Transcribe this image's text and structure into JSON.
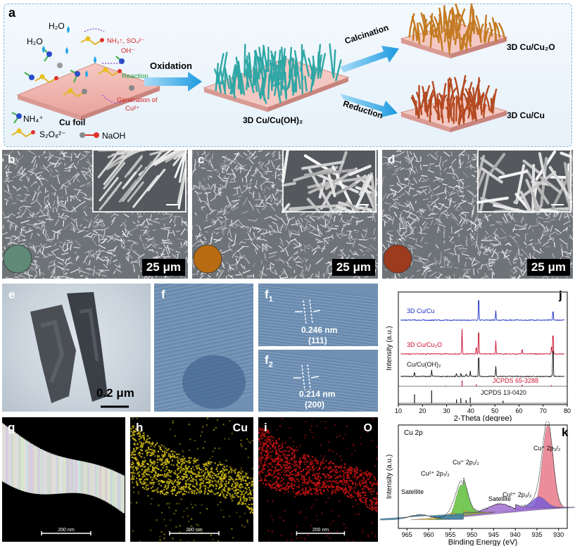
{
  "panel_a": {
    "label": "a",
    "h2o_1": "H₂O",
    "h2o_2": "H₂O",
    "byproducts": "NH₃↑, SO₄²⁻",
    "oh": "OH⁻",
    "reaction": "Reaction",
    "generation": "Generation of",
    "cu2": "Cu²⁺",
    "cu_foil": "Cu foil",
    "nh4": "NH₄⁺",
    "s2o8": "S₂O₈²⁻",
    "naoh": "NaOH",
    "oxidation": "Oxidation",
    "product_oh": "3D Cu/Cu(OH)₂",
    "calcination": "Calcination",
    "reduction": "Reduction",
    "product_cu2o": "3D Cu/Cu₂O",
    "product_cu": "3D Cu/Cu"
  },
  "sem_panels": [
    {
      "label": "b",
      "scale": "25 μm",
      "disk_color": "#5f8a78"
    },
    {
      "label": "c",
      "scale": "25 μm",
      "disk_color": "#b86b12"
    },
    {
      "label": "d",
      "scale": "25 μm",
      "disk_color": "#9c3b1e"
    }
  ],
  "panel_e": {
    "label": "e",
    "scale": "0.2 μm"
  },
  "panel_f": {
    "label": "f"
  },
  "panel_f1": {
    "label": "f",
    "sub": "1",
    "d": "0.246 nm",
    "hkl": "(111)"
  },
  "panel_f2": {
    "label": "f",
    "sub": "2",
    "d": "0.214 nm",
    "hkl": "(200)"
  },
  "eds": [
    {
      "label": "g",
      "element": "",
      "scale": "200 nm"
    },
    {
      "label": "h",
      "element": "Cu",
      "scale": "200 nm"
    },
    {
      "label": "i",
      "element": "O",
      "scale": "200 nm"
    }
  ],
  "chart_data": [
    {
      "type": "line",
      "panel": "j",
      "xlabel": "2-Theta (degree)",
      "ylabel": "Intensity (a.u.)",
      "xlim": [
        10,
        80
      ],
      "x_ticks": [
        10,
        20,
        30,
        40,
        50,
        60,
        70,
        80
      ],
      "series": [
        {
          "name": "3D Cu/Cu",
          "color": "#1a2fc8",
          "peaks": [
            43.3,
            50.4,
            74.1
          ],
          "heights": [
            1.0,
            0.35,
            0.4
          ]
        },
        {
          "name": "3D Cu/Cu₂O",
          "color": "#c8102e",
          "peaks": [
            36.4,
            42.3,
            43.3,
            50.4,
            61.3,
            73.5,
            74.1
          ],
          "heights": [
            0.85,
            0.3,
            1.0,
            0.45,
            0.2,
            0.3,
            0.85
          ]
        },
        {
          "name": "Cu/Cu(OH)₂",
          "color": "#111111",
          "peaks": [
            16.7,
            23.8,
            34.1,
            35.9,
            38.1,
            39.8,
            43.3,
            50.4,
            74.1
          ],
          "heights": [
            0.15,
            0.18,
            0.1,
            0.12,
            0.08,
            0.15,
            0.75,
            0.3,
            1.0
          ]
        }
      ],
      "references": [
        {
          "name": "JCPDS 65-3288",
          "color": "#c8102e",
          "peaks": [
            29.6,
            36.4,
            42.3,
            61.3,
            73.5
          ],
          "heights": [
            0.1,
            1.0,
            0.35,
            0.3,
            0.2
          ]
        },
        {
          "name": "JCPDS 13-0420",
          "color": "#111111",
          "peaks": [
            16.7,
            23.8,
            34.1,
            35.9,
            38.1,
            39.8,
            53.4
          ],
          "heights": [
            0.7,
            1.0,
            0.3,
            0.4,
            0.25,
            0.45,
            0.2
          ]
        }
      ]
    },
    {
      "type": "line",
      "panel": "k",
      "title": "Cu 2p",
      "xlabel": "Binding Energy (eV)",
      "ylabel": "Intensity (a.u.)",
      "xlim": [
        967,
        928
      ],
      "x_ticks": [
        965,
        960,
        955,
        950,
        945,
        940,
        935,
        930
      ],
      "peaks": [
        {
          "name": "Cu⁺ 2p₃/₂",
          "center": 932.5,
          "height": 1.0,
          "width": 1.2,
          "color": "#e87a8a"
        },
        {
          "name": "Cu²⁺ 2p₃/₂",
          "center": 934.5,
          "height": 0.13,
          "width": 1.6,
          "color": "#7a5cd6"
        },
        {
          "name": "Satellite",
          "center": 943.5,
          "height": 0.1,
          "width": 2.5,
          "color": "#a070d0"
        },
        {
          "name": "Cu⁺ 2p₁/₂",
          "center": 952.4,
          "height": 0.42,
          "width": 1.3,
          "color": "#5fbf3a"
        },
        {
          "name": "Cu²⁺ 2p₁/₂",
          "center": 954.5,
          "height": 0.08,
          "width": 1.6,
          "color": "#d7b84a"
        },
        {
          "name": "Satellite",
          "center": 962.0,
          "height": 0.06,
          "width": 2.5,
          "color": "#3a7fa0"
        }
      ]
    }
  ]
}
